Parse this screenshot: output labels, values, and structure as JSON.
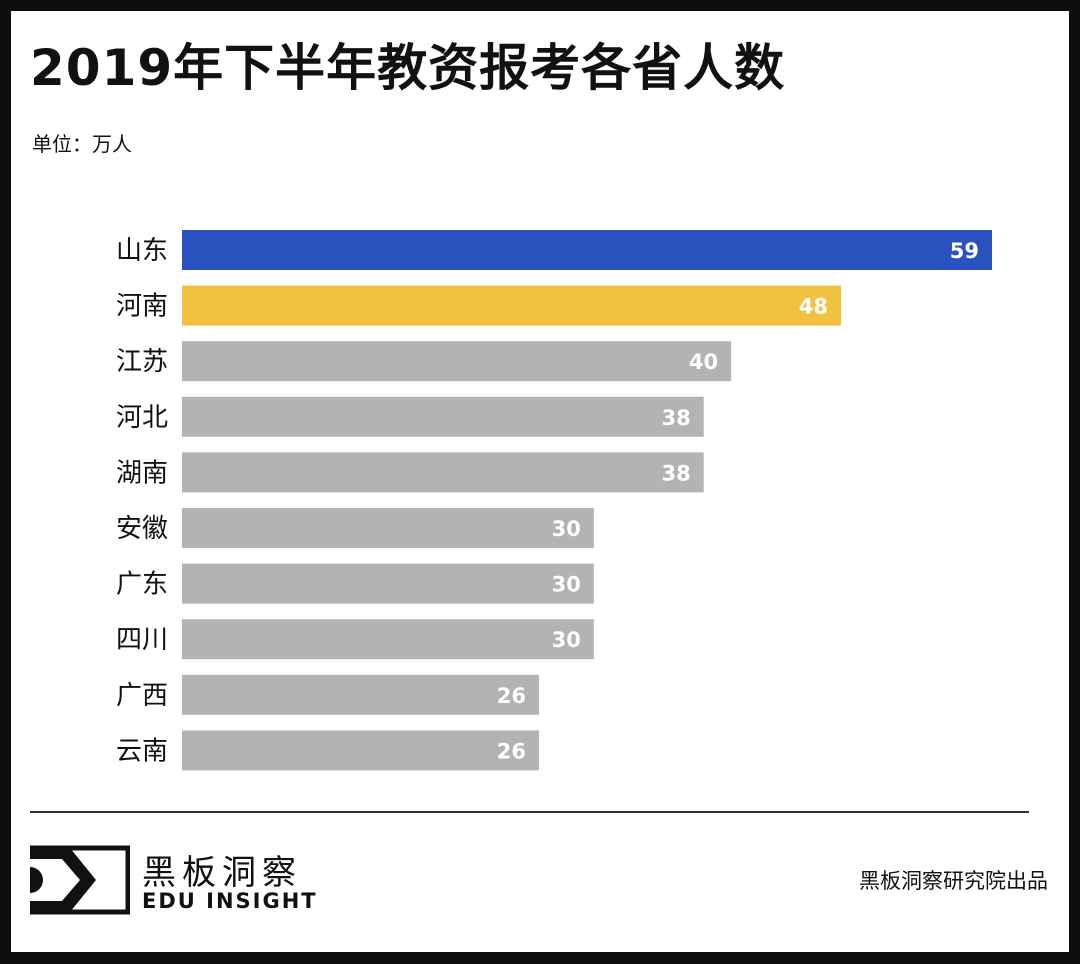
{
  "title": "2019年下半年教资报考各省人数",
  "unit_label": "单位：万人",
  "chart_data": {
    "type": "bar",
    "orientation": "horizontal",
    "title": "2019年下半年教资报考各省人数",
    "unit": "万人",
    "categories": [
      "山东",
      "河南",
      "江苏",
      "河北",
      "湖南",
      "安徽",
      "广东",
      "四川",
      "广西",
      "云南"
    ],
    "values": [
      59,
      48,
      40,
      38,
      38,
      30,
      30,
      30,
      26,
      26
    ],
    "colors": [
      "#2a52be",
      "#f2c140",
      "#b3b3b3",
      "#b3b3b3",
      "#b3b3b3",
      "#b3b3b3",
      "#b3b3b3",
      "#b3b3b3",
      "#b3b3b3",
      "#b3b3b3"
    ],
    "data_labels": true,
    "grid": false,
    "xlim": [
      0,
      59
    ]
  },
  "footer": {
    "logo_cn": "黑板洞察",
    "logo_en": "EDU INSIGHT",
    "credit": "黑板洞察研究院出品"
  }
}
